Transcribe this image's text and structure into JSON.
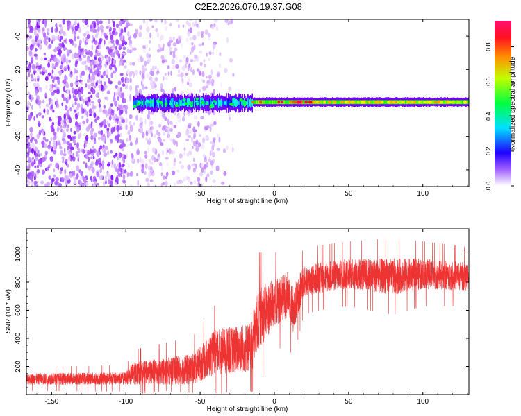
{
  "title": "C2E2.2026.070.19.37.G08",
  "colors": {
    "snr_line": "#ee3333",
    "axis": "#000000"
  },
  "chart_data": [
    {
      "type": "heatmap",
      "xlabel": "Height of straight line (km)",
      "ylabel": "Frequency (Hz)",
      "xlim": [
        -167,
        131
      ],
      "ylim": [
        -50,
        50
      ],
      "xticks": [
        -150,
        -100,
        -50,
        0,
        50,
        100
      ],
      "yticks": [
        -40,
        -20,
        0,
        20,
        40
      ],
      "colorbar": {
        "label": "Normalized spectral amplitude",
        "range": [
          0,
          0.95
        ],
        "ticks": [
          0.0,
          0.2,
          0.4,
          0.6,
          0.8
        ],
        "colormap": [
          "#ffffff",
          "#7b00ff",
          "#0000ff",
          "#00ffff",
          "#00ff00",
          "#ffff00",
          "#ff8000",
          "#ff0000",
          "#ff0080"
        ]
      },
      "grid": false,
      "regions": [
        {
          "x": [
            -167,
            -95
          ],
          "description": "broadband noise, amplitude 0.02-0.1"
        },
        {
          "x": [
            -95,
            -15
          ],
          "freq_center": 0,
          "freq_halfwidth": 5,
          "amplitude_peak": 0.5
        },
        {
          "x": [
            -15,
            131
          ],
          "freq_center": 0.5,
          "freq_halfwidth": 2.5,
          "amplitude_peak": 0.9
        }
      ]
    },
    {
      "type": "line",
      "xlabel": "Height of straight line (km)",
      "ylabel": "SNR (10 * v/v)",
      "xlim": [
        -167,
        131
      ],
      "ylim": [
        0,
        1180
      ],
      "xticks": [
        -150,
        -100,
        -50,
        0,
        50,
        100
      ],
      "yticks": [
        200,
        400,
        600,
        800,
        1000
      ],
      "grid": false,
      "series": [
        {
          "x": [
            -167,
            -100,
            -95,
            -55,
            -40,
            -15,
            -14,
            -10,
            0,
            10,
            12,
            20,
            30,
            50,
            80,
            100,
            131
          ],
          "mean": [
            110,
            115,
            150,
            180,
            300,
            340,
            420,
            550,
            650,
            720,
            600,
            800,
            830,
            860,
            840,
            860,
            840
          ],
          "spread": [
            40,
            45,
            80,
            110,
            160,
            180,
            200,
            220,
            170,
            160,
            180,
            110,
            110,
            110,
            130,
            110,
            100
          ]
        }
      ]
    }
  ]
}
